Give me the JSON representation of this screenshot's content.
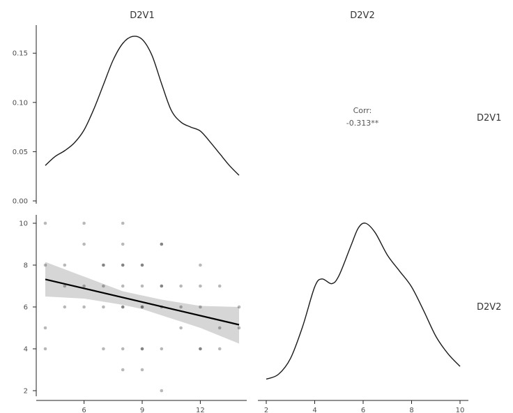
{
  "chart_data": {
    "type": "scatter",
    "variables": [
      "D2V1",
      "D2V2"
    ],
    "column_labels": [
      "D2V1",
      "D2V2"
    ],
    "row_labels": [
      "D2V1",
      "D2V2"
    ],
    "correlation": {
      "label": "Corr:",
      "value": "-0.313**"
    },
    "density_D2V1": {
      "xlim": [
        4,
        14
      ],
      "ylim": [
        0,
        0.17
      ],
      "y_ticks": [
        "0.00",
        "0.05",
        "0.10",
        "0.15"
      ],
      "points": [
        [
          4,
          0.036
        ],
        [
          4.5,
          0.045
        ],
        [
          5,
          0.051
        ],
        [
          5.5,
          0.059
        ],
        [
          6,
          0.072
        ],
        [
          6.5,
          0.093
        ],
        [
          7,
          0.118
        ],
        [
          7.5,
          0.143
        ],
        [
          8,
          0.16
        ],
        [
          8.5,
          0.167
        ],
        [
          9,
          0.164
        ],
        [
          9.5,
          0.148
        ],
        [
          10,
          0.119
        ],
        [
          10.5,
          0.092
        ],
        [
          11,
          0.08
        ],
        [
          11.5,
          0.075
        ],
        [
          12,
          0.071
        ],
        [
          12.5,
          0.06
        ],
        [
          13,
          0.048
        ],
        [
          13.5,
          0.036
        ],
        [
          14,
          0.026
        ]
      ]
    },
    "scatter": {
      "xlim": [
        4,
        14
      ],
      "ylim": [
        2,
        10
      ],
      "x_ticks": [
        6,
        9,
        12
      ],
      "y_ticks": [
        2,
        4,
        6,
        8,
        10
      ],
      "points": [
        [
          4,
          10
        ],
        [
          4,
          8
        ],
        [
          4,
          5
        ],
        [
          4,
          4
        ],
        [
          5,
          8
        ],
        [
          5,
          7
        ],
        [
          5,
          6
        ],
        [
          6,
          10
        ],
        [
          6,
          9
        ],
        [
          6,
          7
        ],
        [
          6,
          6
        ],
        [
          7,
          8
        ],
        [
          7,
          8
        ],
        [
          7,
          7
        ],
        [
          7,
          6
        ],
        [
          7,
          4
        ],
        [
          8,
          10
        ],
        [
          8,
          9
        ],
        [
          8,
          8
        ],
        [
          8,
          8
        ],
        [
          8,
          7
        ],
        [
          8,
          6
        ],
        [
          8,
          6
        ],
        [
          8,
          4
        ],
        [
          8,
          3
        ],
        [
          9,
          8
        ],
        [
          9,
          8
        ],
        [
          9,
          7
        ],
        [
          9,
          6
        ],
        [
          9,
          6
        ],
        [
          9,
          4
        ],
        [
          9,
          4
        ],
        [
          9,
          3
        ],
        [
          10,
          9
        ],
        [
          10,
          9
        ],
        [
          10,
          7
        ],
        [
          10,
          7
        ],
        [
          10,
          6
        ],
        [
          10,
          4
        ],
        [
          10,
          2
        ],
        [
          11,
          7
        ],
        [
          11,
          6
        ],
        [
          11,
          5
        ],
        [
          12,
          8
        ],
        [
          12,
          7
        ],
        [
          12,
          6
        ],
        [
          12,
          4
        ],
        [
          12,
          4
        ],
        [
          13,
          7
        ],
        [
          13,
          5
        ],
        [
          13,
          4
        ],
        [
          14,
          6
        ],
        [
          14,
          5
        ]
      ],
      "fit": {
        "x": [
          4,
          14
        ],
        "y": [
          7.32,
          5.15
        ]
      },
      "ci_band": {
        "x": [
          4,
          6,
          8,
          9,
          10,
          12,
          14
        ],
        "lower": [
          6.5,
          6.4,
          6.1,
          5.9,
          5.6,
          5.0,
          4.25
        ],
        "upper": [
          8.15,
          7.45,
          6.75,
          6.55,
          6.35,
          6.05,
          6.0
        ]
      }
    },
    "density_D2V2": {
      "xlim": [
        2,
        10
      ],
      "x_ticks": [
        2,
        4,
        6,
        8,
        10
      ],
      "points": [
        [
          2,
          0.02
        ],
        [
          2.5,
          0.05
        ],
        [
          3,
          0.15
        ],
        [
          3.5,
          0.35
        ],
        [
          4,
          0.6
        ],
        [
          4.3,
          0.65
        ],
        [
          4.7,
          0.62
        ],
        [
          5,
          0.67
        ],
        [
          5.5,
          0.86
        ],
        [
          5.8,
          0.97
        ],
        [
          6.1,
          1.0
        ],
        [
          6.5,
          0.94
        ],
        [
          7,
          0.8
        ],
        [
          7.5,
          0.7
        ],
        [
          8,
          0.6
        ],
        [
          8.5,
          0.45
        ],
        [
          9,
          0.29
        ],
        [
          9.5,
          0.18
        ],
        [
          10,
          0.1
        ]
      ]
    }
  }
}
